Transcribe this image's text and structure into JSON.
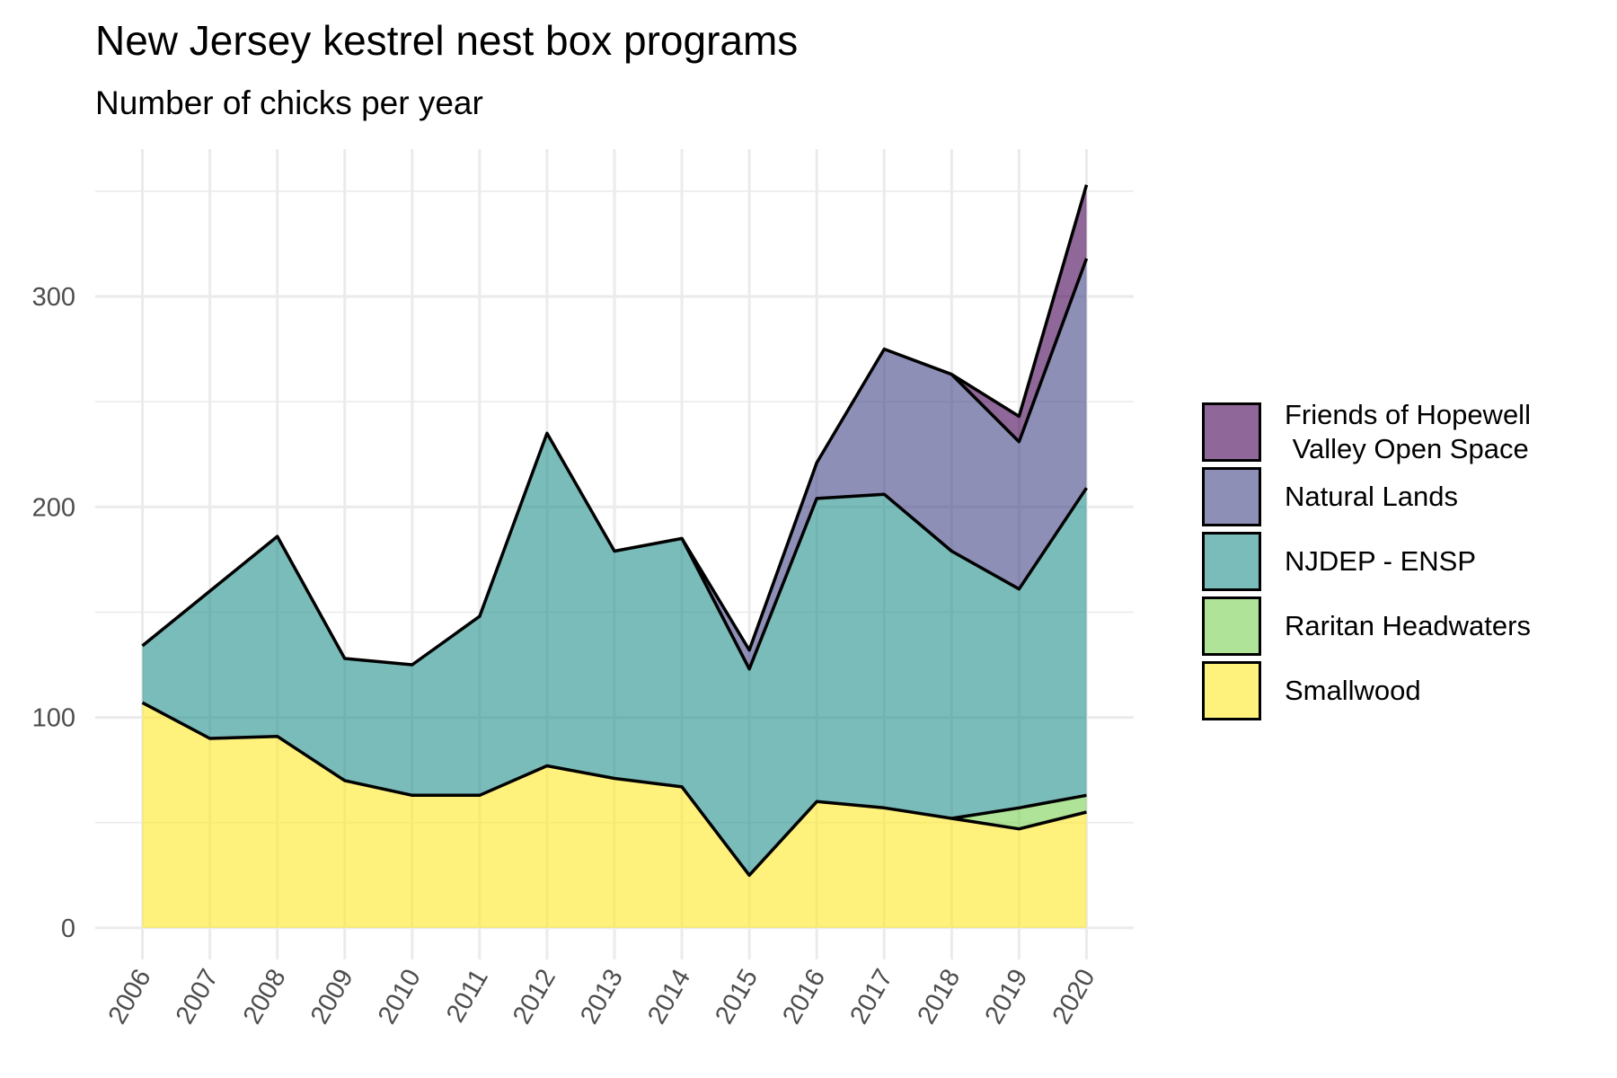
{
  "chart_data": {
    "type": "area",
    "stacked": true,
    "title": "New Jersey kestrel nest box programs",
    "subtitle": "Number of chicks per year",
    "xlabel": "",
    "ylabel": "",
    "x": [
      2006,
      2007,
      2008,
      2009,
      2010,
      2011,
      2012,
      2013,
      2014,
      2015,
      2016,
      2017,
      2018,
      2019,
      2020
    ],
    "x_tick_labels": [
      "2006",
      "2007",
      "2008",
      "2009",
      "2010",
      "2011",
      "2012",
      "2013",
      "2014",
      "2015",
      "2016",
      "2017",
      "2018",
      "2019",
      "2020"
    ],
    "ylim": [
      -15,
      370
    ],
    "y_ticks": [
      0,
      100,
      200,
      300
    ],
    "y_tick_labels": [
      "0",
      "100",
      "200",
      "300"
    ],
    "grid": true,
    "legend_position": "right",
    "series": [
      {
        "name": "Smallwood",
        "color": "#fde725",
        "values": [
          107,
          90,
          91,
          70,
          63,
          63,
          77,
          71,
          67,
          25,
          60,
          57,
          52,
          47,
          55
        ]
      },
      {
        "name": "Raritan Headwaters",
        "color": "#7ad151",
        "values": [
          0,
          0,
          0,
          0,
          0,
          0,
          0,
          0,
          0,
          0,
          0,
          0,
          0,
          10,
          8
        ]
      },
      {
        "name": "NJDEP - ENSP",
        "color": "#22908b",
        "values": [
          27,
          70,
          95,
          58,
          62,
          85,
          158,
          108,
          118,
          98,
          144,
          149,
          127,
          104,
          146
        ]
      },
      {
        "name": "Natural Lands",
        "color": "#414487",
        "values": [
          0,
          0,
          0,
          0,
          0,
          0,
          0,
          0,
          0,
          9,
          17,
          69,
          84,
          70,
          109
        ]
      },
      {
        "name": "Friends of Hopewell\n Valley Open Space",
        "color": "#440154",
        "values": [
          0,
          0,
          0,
          0,
          0,
          0,
          0,
          0,
          0,
          0,
          0,
          0,
          0,
          12,
          35
        ]
      }
    ],
    "legend_order": [
      "Friends of Hopewell\n Valley Open Space",
      "Natural Lands",
      "NJDEP - ENSP",
      "Raritan Headwaters",
      "Smallwood"
    ]
  }
}
